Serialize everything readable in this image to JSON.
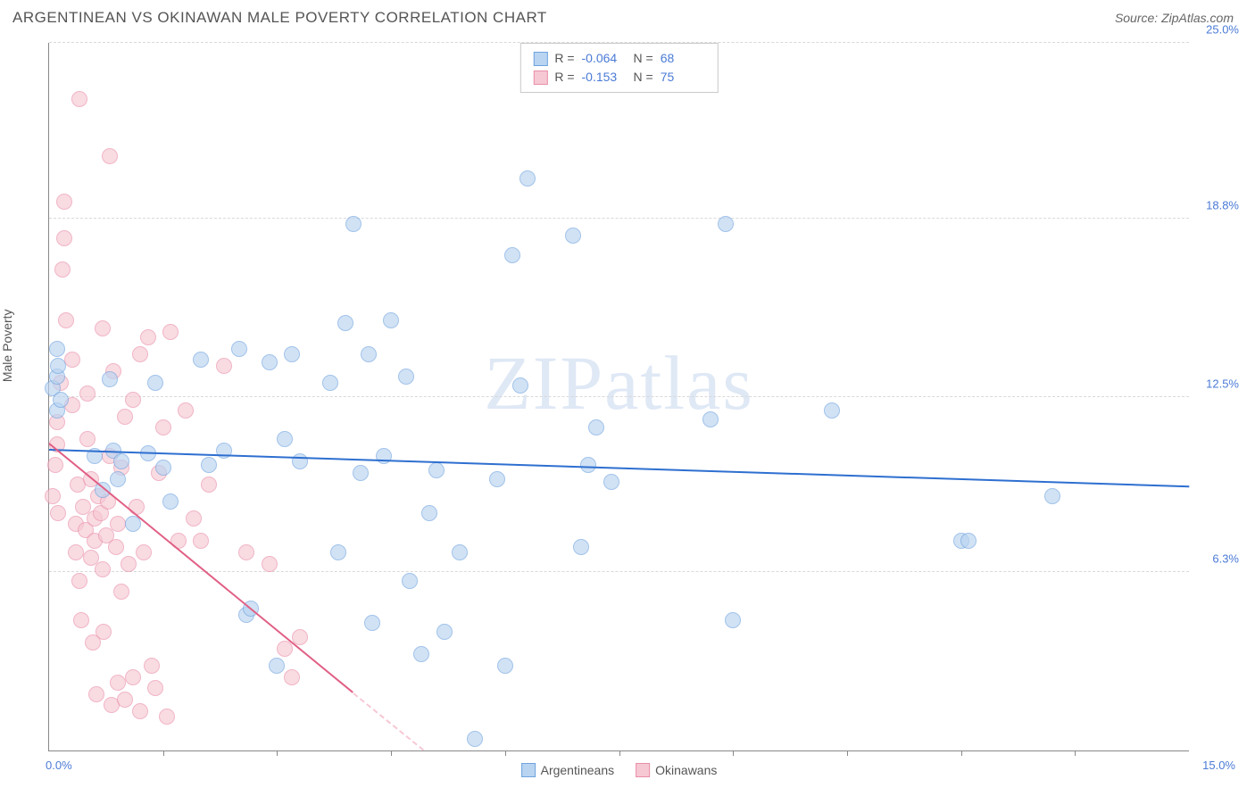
{
  "title": "ARGENTINEAN VS OKINAWAN MALE POVERTY CORRELATION CHART",
  "source_label": "Source: ZipAtlas.com",
  "ylabel": "Male Poverty",
  "watermark": {
    "zip": "ZIP",
    "atlas": "atlas",
    "color": "#dfe8f5"
  },
  "chart": {
    "type": "scatter",
    "xlim": [
      0,
      15
    ],
    "ylim": [
      0,
      25
    ],
    "x_start_label": "0.0%",
    "x_end_label": "15.0%",
    "x_tick_step": 1.5,
    "y_ticks": [
      6.3,
      12.5,
      18.8,
      25.0
    ],
    "y_tick_labels": [
      "6.3%",
      "12.5%",
      "18.8%",
      "25.0%"
    ],
    "grid_color": "#d9d9d9",
    "axis_color": "#888888",
    "background_color": "#ffffff",
    "point_radius": 9,
    "series": [
      {
        "name": "Argentineans",
        "fill": "#b9d4f1",
        "stroke": "#6fa3de",
        "trend_color": "#2e6fd0",
        "fill_opacity": 0.65,
        "R": "-0.064",
        "N": "68",
        "trend": {
          "x1": 0,
          "y1": 10.6,
          "x2": 15,
          "y2": 9.3
        },
        "points": [
          [
            0.05,
            12.8
          ],
          [
            0.1,
            13.2
          ],
          [
            0.1,
            12.0
          ],
          [
            0.1,
            14.2
          ],
          [
            0.12,
            13.6
          ],
          [
            0.15,
            12.4
          ],
          [
            0.6,
            10.4
          ],
          [
            0.7,
            9.2
          ],
          [
            0.8,
            13.1
          ],
          [
            0.85,
            10.6
          ],
          [
            0.9,
            9.6
          ],
          [
            0.95,
            10.2
          ],
          [
            1.1,
            8.0
          ],
          [
            1.3,
            10.5
          ],
          [
            1.4,
            13.0
          ],
          [
            1.5,
            10.0
          ],
          [
            1.6,
            8.8
          ],
          [
            2.0,
            13.8
          ],
          [
            2.1,
            10.1
          ],
          [
            2.3,
            10.6
          ],
          [
            2.5,
            14.2
          ],
          [
            2.6,
            4.8
          ],
          [
            2.65,
            5.0
          ],
          [
            2.9,
            13.7
          ],
          [
            3.0,
            3.0
          ],
          [
            3.1,
            11.0
          ],
          [
            3.2,
            14.0
          ],
          [
            3.3,
            10.2
          ],
          [
            3.7,
            13.0
          ],
          [
            3.8,
            7.0
          ],
          [
            3.9,
            15.1
          ],
          [
            4.0,
            18.6
          ],
          [
            4.1,
            9.8
          ],
          [
            4.2,
            14.0
          ],
          [
            4.25,
            4.5
          ],
          [
            4.4,
            10.4
          ],
          [
            4.5,
            15.2
          ],
          [
            4.7,
            13.2
          ],
          [
            4.75,
            6.0
          ],
          [
            4.9,
            3.4
          ],
          [
            5.0,
            8.4
          ],
          [
            5.1,
            9.9
          ],
          [
            5.2,
            4.2
          ],
          [
            5.4,
            7.0
          ],
          [
            5.6,
            0.4
          ],
          [
            5.9,
            9.6
          ],
          [
            6.0,
            3.0
          ],
          [
            6.1,
            17.5
          ],
          [
            6.2,
            12.9
          ],
          [
            6.3,
            20.2
          ],
          [
            6.9,
            18.2
          ],
          [
            7.0,
            7.2
          ],
          [
            7.1,
            10.1
          ],
          [
            7.2,
            11.4
          ],
          [
            7.4,
            9.5
          ],
          [
            8.7,
            11.7
          ],
          [
            8.9,
            18.6
          ],
          [
            9.0,
            4.6
          ],
          [
            10.3,
            12.0
          ],
          [
            12.0,
            7.4
          ],
          [
            12.1,
            7.4
          ],
          [
            13.2,
            9.0
          ]
        ]
      },
      {
        "name": "Okinawans",
        "fill": "#f6c8d4",
        "stroke": "#e98fa8",
        "trend_color": "#e15f85",
        "fill_opacity": 0.65,
        "R": "-0.153",
        "N": "75",
        "trend": {
          "x1": 0,
          "y1": 10.8,
          "x2": 4.0,
          "y2": 2.0
        },
        "trend_dash": {
          "x1": 4.0,
          "y1": 2.0,
          "x2": 5.7,
          "y2": -1.7
        },
        "points": [
          [
            0.05,
            9.0
          ],
          [
            0.08,
            10.1
          ],
          [
            0.1,
            10.8
          ],
          [
            0.1,
            11.6
          ],
          [
            0.12,
            8.4
          ],
          [
            0.15,
            13.0
          ],
          [
            0.18,
            17.0
          ],
          [
            0.2,
            18.1
          ],
          [
            0.2,
            19.4
          ],
          [
            0.22,
            15.2
          ],
          [
            0.3,
            13.8
          ],
          [
            0.3,
            12.2
          ],
          [
            0.35,
            7.0
          ],
          [
            0.35,
            8.0
          ],
          [
            0.38,
            9.4
          ],
          [
            0.4,
            23.0
          ],
          [
            0.4,
            6.0
          ],
          [
            0.42,
            4.6
          ],
          [
            0.45,
            8.6
          ],
          [
            0.48,
            7.8
          ],
          [
            0.5,
            12.6
          ],
          [
            0.5,
            11.0
          ],
          [
            0.55,
            9.6
          ],
          [
            0.55,
            6.8
          ],
          [
            0.58,
            3.8
          ],
          [
            0.6,
            8.2
          ],
          [
            0.6,
            7.4
          ],
          [
            0.62,
            2.0
          ],
          [
            0.65,
            9.0
          ],
          [
            0.68,
            8.4
          ],
          [
            0.7,
            14.9
          ],
          [
            0.7,
            6.4
          ],
          [
            0.72,
            4.2
          ],
          [
            0.75,
            7.6
          ],
          [
            0.78,
            8.8
          ],
          [
            0.8,
            21.0
          ],
          [
            0.8,
            10.4
          ],
          [
            0.82,
            1.6
          ],
          [
            0.85,
            13.4
          ],
          [
            0.88,
            7.2
          ],
          [
            0.9,
            2.4
          ],
          [
            0.9,
            8.0
          ],
          [
            0.95,
            5.6
          ],
          [
            0.95,
            10.0
          ],
          [
            1.0,
            11.8
          ],
          [
            1.0,
            1.8
          ],
          [
            1.05,
            6.6
          ],
          [
            1.1,
            12.4
          ],
          [
            1.1,
            2.6
          ],
          [
            1.15,
            8.6
          ],
          [
            1.2,
            14.0
          ],
          [
            1.2,
            1.4
          ],
          [
            1.25,
            7.0
          ],
          [
            1.3,
            14.6
          ],
          [
            1.35,
            3.0
          ],
          [
            1.4,
            2.2
          ],
          [
            1.45,
            9.8
          ],
          [
            1.5,
            11.4
          ],
          [
            1.55,
            1.2
          ],
          [
            1.6,
            14.8
          ],
          [
            1.7,
            7.4
          ],
          [
            1.8,
            12.0
          ],
          [
            1.9,
            8.2
          ],
          [
            2.0,
            7.4
          ],
          [
            2.1,
            9.4
          ],
          [
            2.3,
            13.6
          ],
          [
            2.6,
            7.0
          ],
          [
            2.9,
            6.6
          ],
          [
            3.1,
            3.6
          ],
          [
            3.2,
            2.6
          ],
          [
            3.3,
            4.0
          ]
        ]
      }
    ]
  },
  "legend": {
    "series1_label": "Argentineans",
    "series2_label": "Okinawans"
  },
  "stats_labels": {
    "R": "R =",
    "N": "N ="
  }
}
